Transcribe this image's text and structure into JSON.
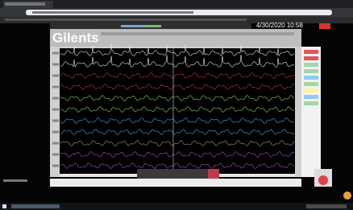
{
  "viewer": {
    "logo": "Gilents",
    "timestamp": "4/30/2020 10:58"
  }
}
